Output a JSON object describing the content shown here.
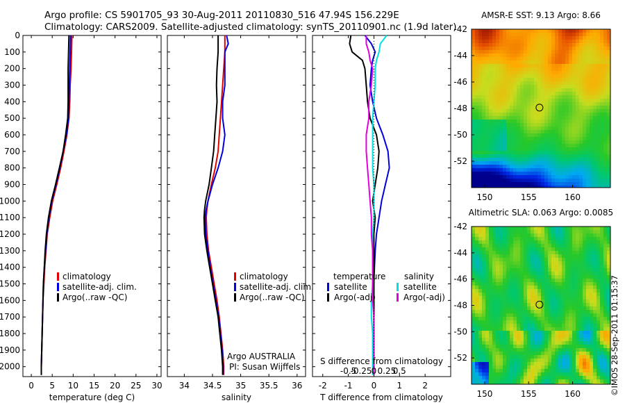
{
  "header": {
    "line1": "Argo profile: CS 5901705_93 30-Aug-2011 20110830_516 47.94S 156.229E",
    "line2": "Climatology: CARS2009. Satellite-adjusted climatology: synTS_20110901.nc (1.9d later)"
  },
  "credit": "©IMOS 28-Sep-2011 01:15:37",
  "colors": {
    "red": "#e00000",
    "blue": "#0000dd",
    "black": "#000000",
    "cyan": "#00e0e0",
    "magenta": "#e000e0"
  },
  "chart_data": [
    {
      "type": "line",
      "id": "temperature",
      "xlabel": "temperature (deg C)",
      "xlim": [
        -2,
        31
      ],
      "ylim": [
        2060,
        0
      ],
      "xticks": [
        0,
        5,
        10,
        15,
        20,
        25,
        30
      ],
      "yticks": [
        0,
        100,
        200,
        300,
        400,
        500,
        600,
        700,
        800,
        900,
        1000,
        1100,
        1200,
        1300,
        1400,
        1500,
        1600,
        1700,
        1800,
        1900,
        2000
      ],
      "legend": [
        "climatology",
        "satellite-adj. clim.",
        "Argo(..raw -QC)"
      ],
      "legend_placement": "lower-center",
      "depth": [
        0,
        100,
        200,
        300,
        400,
        500,
        600,
        700,
        800,
        900,
        1000,
        1100,
        1200,
        1300,
        1400,
        1500,
        1600,
        1700,
        1800,
        1900,
        2000,
        2050
      ],
      "series": [
        {
          "name": "climatology",
          "color": "red",
          "values": [
            9.7,
            9.6,
            9.5,
            9.3,
            9.2,
            9.0,
            8.5,
            7.8,
            7.0,
            6.1,
            5.1,
            4.4,
            3.8,
            3.5,
            3.2,
            3.0,
            2.8,
            2.7,
            2.6,
            2.5,
            2.4,
            2.4
          ]
        },
        {
          "name": "satellite-adj. clim.",
          "color": "blue",
          "values": [
            9.4,
            9.3,
            9.2,
            9.1,
            9.0,
            8.9,
            8.4,
            7.6,
            6.8,
            5.9,
            4.9,
            4.2,
            3.7,
            3.4,
            3.1,
            2.9,
            2.8,
            2.7,
            2.6,
            2.5,
            2.4,
            2.4
          ]
        },
        {
          "name": "Argo(..raw -QC)",
          "color": "black",
          "values": [
            9.0,
            8.9,
            8.8,
            8.8,
            8.8,
            8.7,
            8.2,
            7.6,
            6.7,
            5.8,
            4.8,
            4.1,
            3.6,
            3.3,
            3.1,
            2.9,
            2.8,
            2.7,
            2.6,
            2.5,
            2.4,
            2.4
          ]
        }
      ]
    },
    {
      "type": "line",
      "id": "salinity",
      "xlabel": "salinity",
      "xlim": [
        33.7,
        36.15
      ],
      "ylim": [
        2060,
        0
      ],
      "xticks": [
        34,
        34.5,
        35,
        35.5,
        36
      ],
      "legend": [
        "climatology",
        "satellite-adj. clim.",
        "Argo(..raw -QC)"
      ],
      "legend_placement": "lower-right",
      "note": [
        "Argo AUSTRALIA",
        "PI: Susan Wijffels"
      ],
      "depth": [
        0,
        50,
        100,
        200,
        300,
        400,
        500,
        600,
        700,
        800,
        900,
        1000,
        1050,
        1100,
        1200,
        1300,
        1400,
        1500,
        1600,
        1700,
        1800,
        1900,
        2000,
        2050
      ],
      "series": [
        {
          "name": "climatology",
          "color": "red",
          "values": [
            34.72,
            34.72,
            34.72,
            34.7,
            34.68,
            34.66,
            34.64,
            34.62,
            34.6,
            34.55,
            34.48,
            34.42,
            34.4,
            34.39,
            34.4,
            34.43,
            34.48,
            34.53,
            34.58,
            34.62,
            34.65,
            34.68,
            34.7,
            34.7
          ]
        },
        {
          "name": "satellite-adj. clim.",
          "color": "blue",
          "values": [
            34.75,
            34.78,
            34.72,
            34.72,
            34.72,
            34.68,
            34.68,
            34.72,
            34.68,
            34.6,
            34.5,
            34.42,
            34.39,
            34.37,
            34.38,
            34.42,
            34.46,
            34.51,
            34.56,
            34.61,
            34.64,
            34.67,
            34.69,
            34.69
          ]
        },
        {
          "name": "Argo(..raw -QC)",
          "color": "black",
          "values": [
            34.6,
            34.6,
            34.6,
            34.58,
            34.57,
            34.58,
            34.56,
            34.54,
            34.52,
            34.48,
            34.44,
            34.38,
            34.36,
            34.35,
            34.36,
            34.4,
            34.45,
            34.5,
            34.55,
            34.6,
            34.63,
            34.66,
            34.68,
            34.68
          ]
        }
      ]
    },
    {
      "type": "line",
      "id": "difference",
      "xlabel": "T difference from climatology",
      "xlabel2": "S difference from climatology",
      "xlim": [
        -2.4,
        3.0
      ],
      "ylim": [
        2060,
        0
      ],
      "xticks": [
        -2,
        -1,
        0,
        1,
        2
      ],
      "xticks2": [
        -0.5,
        -0.25,
        0,
        0.25,
        0.5
      ],
      "legend_title_t": "temperature",
      "legend_title_s": "salinity",
      "legend": [
        "satellite",
        "Argo(-adj)",
        "satellite",
        "Argo(-adj)"
      ],
      "legend_placement": "lower-center",
      "depth": [
        0,
        50,
        100,
        150,
        200,
        300,
        400,
        500,
        600,
        700,
        800,
        900,
        1000,
        1100,
        1200,
        1300,
        1400,
        1500,
        1600,
        1700,
        1800,
        1900,
        2000,
        2050
      ],
      "series": [
        {
          "name": "temperature satellite",
          "color": "blue",
          "values": [
            -0.35,
            -0.1,
            0.05,
            -0.05,
            -0.1,
            -0.15,
            -0.05,
            0.1,
            0.35,
            0.55,
            0.6,
            0.45,
            0.3,
            0.2,
            0.1,
            0.05,
            0.02,
            0.0,
            0.0,
            0.0,
            0.0,
            0.0,
            0.0,
            0.0
          ]
        },
        {
          "name": "temperature Argo(-adj)",
          "color": "black",
          "values": [
            -0.9,
            -0.95,
            -0.85,
            -0.45,
            -0.35,
            -0.3,
            -0.25,
            -0.15,
            0.1,
            0.2,
            0.15,
            0.05,
            -0.05,
            0.05,
            0.0,
            0.0,
            0.0,
            0.0,
            0.0,
            0.0,
            0.0,
            0.0,
            0.0,
            0.0
          ]
        },
        {
          "name": "salinity satellite",
          "color": "cyan",
          "values": [
            0.5,
            0.25,
            0.2,
            0.1,
            0.05,
            0.05,
            0.0,
            -0.05,
            -0.05,
            -0.05,
            -0.05,
            0.0,
            0.0,
            0.0,
            -0.05,
            -0.05,
            -0.05,
            -0.05,
            -0.1,
            -0.1,
            -0.05,
            -0.05,
            -0.05,
            -0.05
          ]
        },
        {
          "name": "salinity Argo(-adj)",
          "color": "magenta",
          "values": [
            -0.3,
            -0.3,
            -0.2,
            -0.15,
            -0.05,
            -0.1,
            -0.2,
            -0.2,
            -0.3,
            -0.3,
            -0.25,
            -0.2,
            -0.15,
            -0.1,
            -0.1,
            -0.05,
            -0.05,
            -0.05,
            -0.05,
            0.0,
            0.0,
            0.0,
            0.0,
            0.0
          ]
        }
      ]
    },
    {
      "type": "heatmap",
      "id": "sst",
      "title": "AMSR-E SST: 9.13 Argo: 8.66",
      "xlim": [
        148.5,
        164.3
      ],
      "ylim": [
        -54,
        -42
      ],
      "xticks": [
        150,
        155,
        160
      ],
      "yticks": [
        -42,
        -44,
        -46,
        -48,
        -50,
        -52
      ],
      "marker": {
        "lon": 156.229,
        "lat": -47.94
      }
    },
    {
      "type": "heatmap",
      "id": "sla",
      "title": "Altimetric SLA: 0.063 Argo: 0.0085",
      "xlim": [
        148.5,
        164.3
      ],
      "ylim": [
        -54,
        -42
      ],
      "xticks": [
        150,
        155,
        160
      ],
      "yticks": [
        -42,
        -44,
        -46,
        -48,
        -50,
        -52
      ],
      "marker": {
        "lon": 156.229,
        "lat": -47.94
      }
    }
  ]
}
